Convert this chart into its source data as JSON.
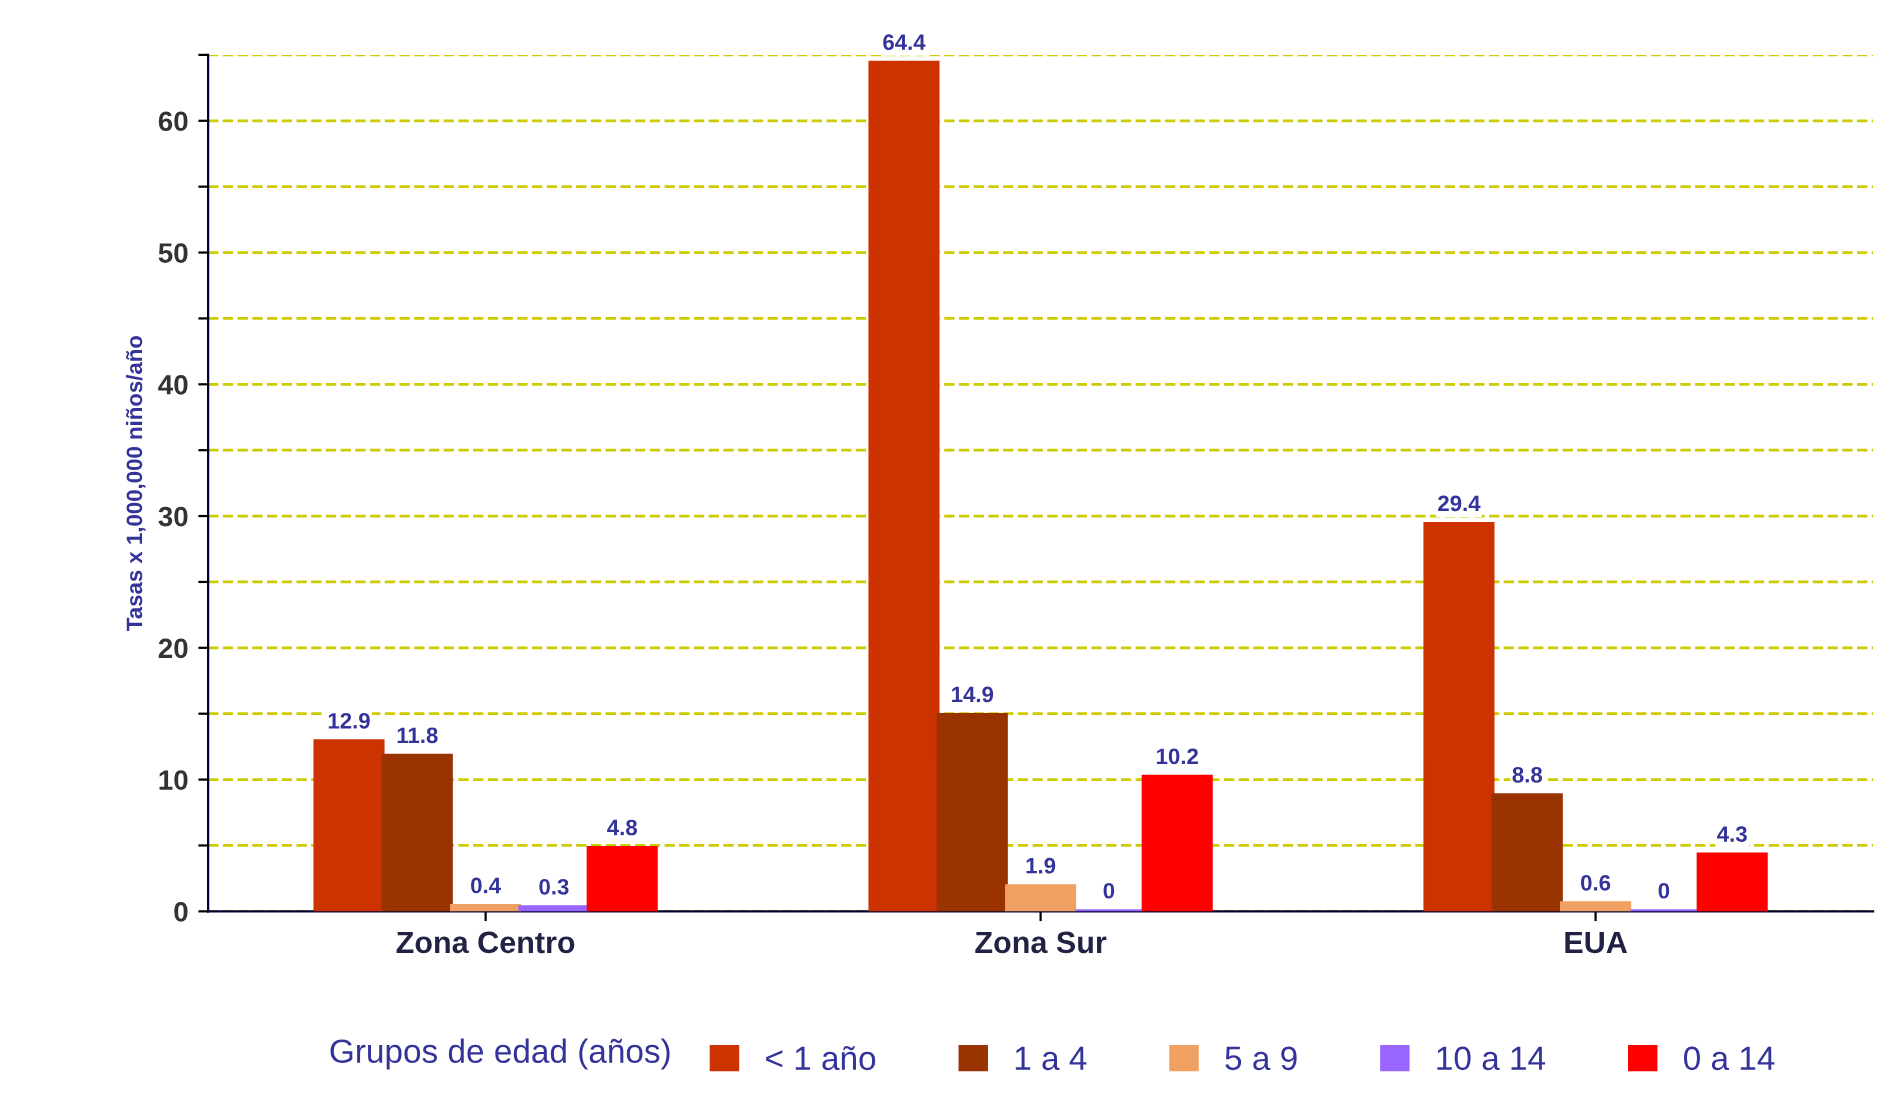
{
  "chart_data": {
    "type": "bar",
    "ylabel": "Tasas x 1,000,000 niños/año",
    "legend_title": "Grupos de edad (años)",
    "categories": [
      "Zona Centro",
      "Zona Sur",
      "EUA"
    ],
    "series": [
      {
        "name": "< 1 año",
        "color": "#cc3300",
        "values": [
          12.9,
          64.4,
          29.4
        ]
      },
      {
        "name": "1 a 4",
        "color": "#993300",
        "values": [
          11.8,
          14.9,
          8.8
        ]
      },
      {
        "name": "5 a 9",
        "color": "#f0a060",
        "values": [
          0.4,
          1.9,
          0.6
        ]
      },
      {
        "name": "10 a 14",
        "color": "#9966ff",
        "values": [
          0.3,
          0,
          0
        ]
      },
      {
        "name": "0 a 14",
        "color": "#ff0000",
        "values": [
          4.8,
          10.2,
          4.3
        ]
      }
    ],
    "ylim": [
      0,
      65
    ],
    "yticks": [
      0,
      {
        "value": 5,
        "label": null
      },
      10,
      {
        "value": 15,
        "label": null
      },
      20,
      {
        "value": 25,
        "label": null
      },
      30,
      {
        "value": 35,
        "label": null
      },
      40,
      {
        "value": 45,
        "label": null
      },
      50,
      {
        "value": 55,
        "label": null
      },
      60,
      {
        "value": 65,
        "label": null
      }
    ],
    "grid": "y",
    "data_labels": true,
    "legend": "bottom"
  }
}
